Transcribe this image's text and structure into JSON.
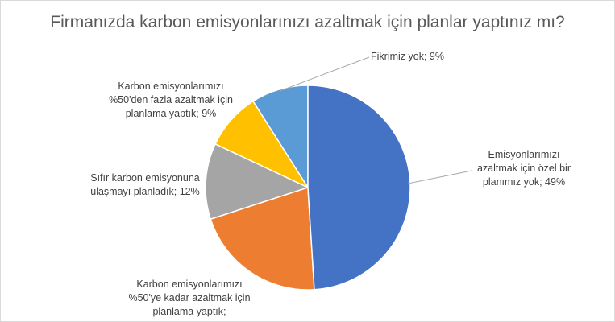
{
  "chart_data": {
    "type": "pie",
    "title": "Firmanızda karbon emisyonlarınızı azaltmak için planlar yaptınız mı?",
    "start": "top",
    "direction": "clockwise",
    "slices": [
      {
        "label": "Emisyonlarımızı azaltmak için özel bir planımız yok; 49%",
        "value": 49,
        "color": "#4472C4"
      },
      {
        "label": "Karbon emisyonlarımızı %50'ye kadar azaltmak için planlama yaptık;",
        "value": 21,
        "color": "#ED7D31"
      },
      {
        "label": "Sıfır karbon emisyonuna ulaşmayı planladık; 12%",
        "value": 12,
        "color": "#A5A5A5"
      },
      {
        "label": "Karbon emisyonlarımızı %50'den fazla azaltmak için planlama yaptık; 9%",
        "value": 9,
        "color": "#FFC000"
      },
      {
        "label": "Fikrimiz yok; 9%",
        "value": 9,
        "color": "#5B9BD5"
      }
    ]
  }
}
